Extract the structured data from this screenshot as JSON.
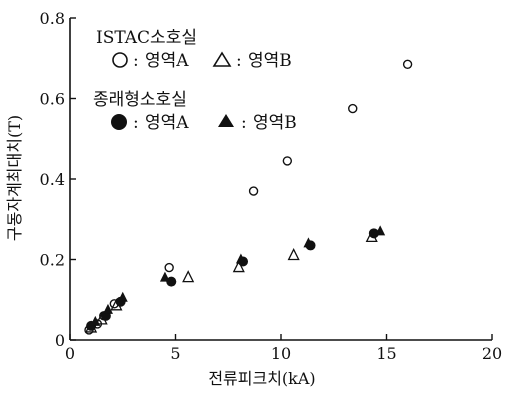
{
  "chart_data": {
    "type": "scatter",
    "xlabel": "전류피크치(kA)",
    "ylabel": "구동자계최대치(T)",
    "xlim": [
      0,
      20
    ],
    "ylim": [
      0,
      0.8
    ],
    "xticks": [
      "0",
      "5",
      "10",
      "15",
      "20"
    ],
    "yticks": [
      "0",
      "0.2",
      "0.4",
      "0.6",
      "0.8"
    ],
    "grid": false,
    "legend": {
      "position": "top-left",
      "group1_title": "ISTAC소호실",
      "group2_title": "종래형소호실",
      "entries": [
        {
          "label": "영역A",
          "marker": "open-circle",
          "sep": ":"
        },
        {
          "label": "영역B",
          "marker": "open-triangle",
          "sep": ":"
        },
        {
          "label": "영역A",
          "marker": "filled-circle",
          "sep": ":"
        },
        {
          "label": "영역B",
          "marker": "filled-triangle",
          "sep": ":"
        }
      ]
    },
    "series": [
      {
        "marker": "open-circle",
        "x": [
          0.9,
          1.3,
          1.6,
          2.1,
          4.7,
          8.7,
          10.3,
          13.4,
          16.0
        ],
        "y": [
          0.025,
          0.04,
          0.06,
          0.09,
          0.18,
          0.37,
          0.445,
          0.575,
          0.685
        ]
      },
      {
        "marker": "open-triangle",
        "x": [
          1.0,
          1.5,
          2.2,
          5.6,
          8.0,
          10.6,
          14.3
        ],
        "y": [
          0.03,
          0.05,
          0.085,
          0.155,
          0.18,
          0.21,
          0.255
        ]
      },
      {
        "marker": "filled-circle",
        "x": [
          1.0,
          1.7,
          2.4,
          4.8,
          8.2,
          11.4,
          14.4
        ],
        "y": [
          0.035,
          0.06,
          0.095,
          0.145,
          0.195,
          0.235,
          0.265
        ]
      },
      {
        "marker": "filled-triangle",
        "x": [
          1.2,
          1.8,
          2.5,
          4.5,
          8.1,
          11.3,
          14.7
        ],
        "y": [
          0.045,
          0.075,
          0.105,
          0.155,
          0.2,
          0.24,
          0.27
        ]
      }
    ]
  }
}
